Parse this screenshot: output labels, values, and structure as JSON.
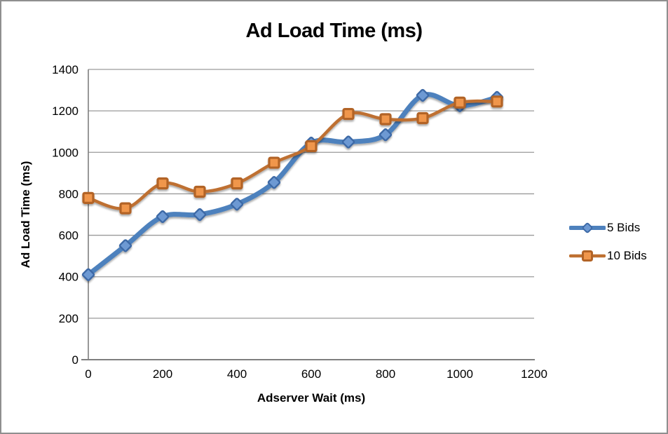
{
  "frame": {
    "border_color": "#8f8f8f",
    "background": "#ffffff"
  },
  "chart_data": {
    "type": "line",
    "title": "Ad Load Time (ms)",
    "xlabel": "Adserver Wait (ms)",
    "ylabel": "Ad Load Time (ms)",
    "x": [
      0,
      100,
      200,
      300,
      400,
      500,
      600,
      700,
      800,
      900,
      1000,
      1100
    ],
    "series": [
      {
        "name": "5 Bids",
        "marker": "diamond",
        "line_color": "#4E81BD",
        "marker_fill": "#6D99D3",
        "marker_stroke": "#3D69A6",
        "line_width": 7,
        "values": [
          410,
          550,
          690,
          700,
          750,
          855,
          1045,
          1050,
          1085,
          1275,
          1225,
          1265
        ]
      },
      {
        "name": "10 Bids",
        "marker": "square",
        "line_color": "#BE7031",
        "marker_fill": "#F0964B",
        "marker_stroke": "#B26325",
        "line_width": 4.5,
        "values": [
          780,
          730,
          850,
          810,
          850,
          950,
          1030,
          1185,
          1160,
          1165,
          1240,
          1245
        ]
      }
    ],
    "xlim": [
      0,
      1200
    ],
    "ylim": [
      0,
      1400
    ],
    "xticks": [
      0,
      200,
      400,
      600,
      800,
      1000,
      1200
    ],
    "yticks": [
      0,
      200,
      400,
      600,
      800,
      1000,
      1200,
      1400
    ],
    "grid": true,
    "smooth_lines": true,
    "legend_position": "right",
    "gridline_color": "#9a9a9a",
    "axis_color": "#7f7f7f",
    "tick_label_color": "#000000"
  }
}
